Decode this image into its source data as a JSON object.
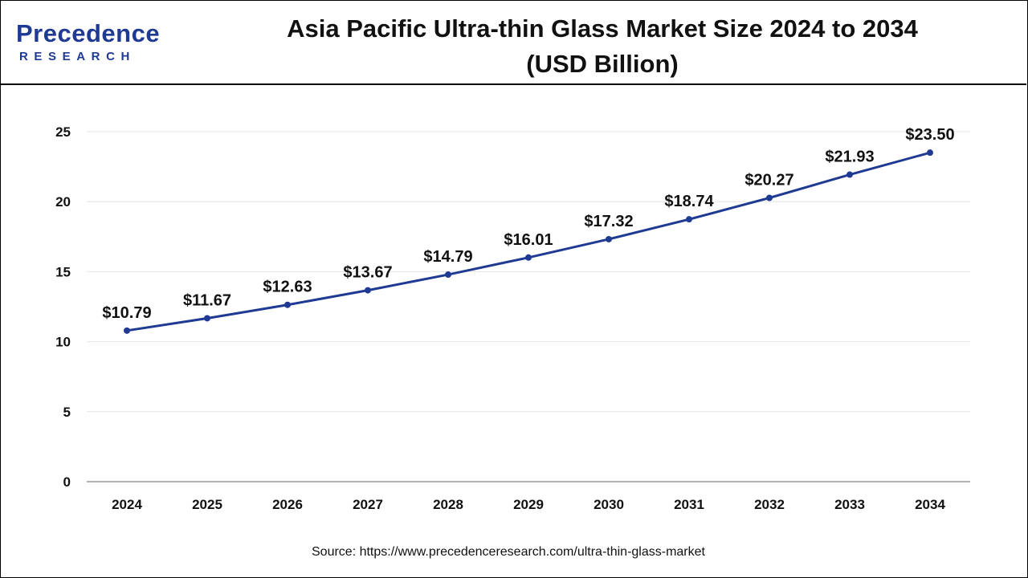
{
  "header": {
    "logo_main": "Precedence",
    "logo_sub": "RESEARCH",
    "title_line1": "Asia Pacific Ultra-thin Glass Market Size 2024 to 2034",
    "title_line2": "(USD Billion)"
  },
  "source": "Source: https://www.precedenceresearch.com/ultra-thin-glass-market",
  "colors": {
    "line": "#1f3a93",
    "grid": "#e6e6e6",
    "axis": "#999999"
  },
  "chart_data": {
    "type": "line",
    "categories": [
      "2024",
      "2025",
      "2026",
      "2027",
      "2028",
      "2029",
      "2030",
      "2031",
      "2032",
      "2033",
      "2034"
    ],
    "series": [
      {
        "values": [
          10.79,
          11.67,
          12.63,
          13.67,
          14.79,
          16.01,
          17.32,
          18.74,
          20.27,
          21.93,
          23.5
        ],
        "labels": [
          "$10.79",
          "$11.67",
          "$12.63",
          "$13.67",
          "$14.79",
          "$16.01",
          "$17.32",
          "$18.74",
          "$20.27",
          "$21.93",
          "$23.50"
        ]
      }
    ],
    "yticks": [
      "0",
      "5",
      "10",
      "15",
      "20",
      "25"
    ],
    "ylim": [
      0,
      25
    ],
    "grid": true,
    "xlabel": "",
    "ylabel": ""
  }
}
